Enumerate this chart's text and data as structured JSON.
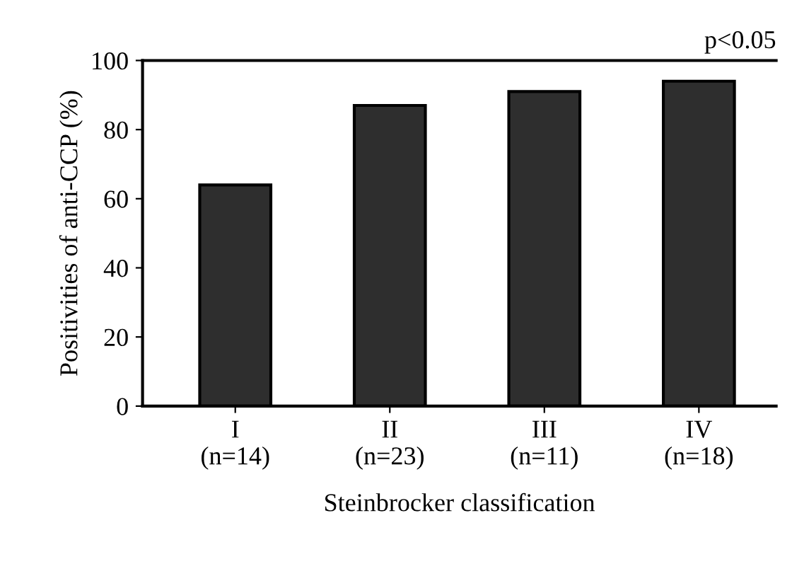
{
  "chart_data": {
    "type": "bar",
    "xlabel": "Steinbrocker classification",
    "ylabel": "Positivities of anti-CCP (%)",
    "categories": [
      "I\n(n=14)",
      "II\n(n=23)",
      "III\n(n=11)",
      "IV\n(n=18)"
    ],
    "values": [
      64,
      87,
      91,
      94
    ],
    "color": "#2e2e2e",
    "ylim": [
      0,
      100
    ],
    "yticks": [
      0,
      20,
      40,
      60,
      80,
      100
    ],
    "grid": false,
    "annotations": [
      "p<0.05"
    ]
  }
}
